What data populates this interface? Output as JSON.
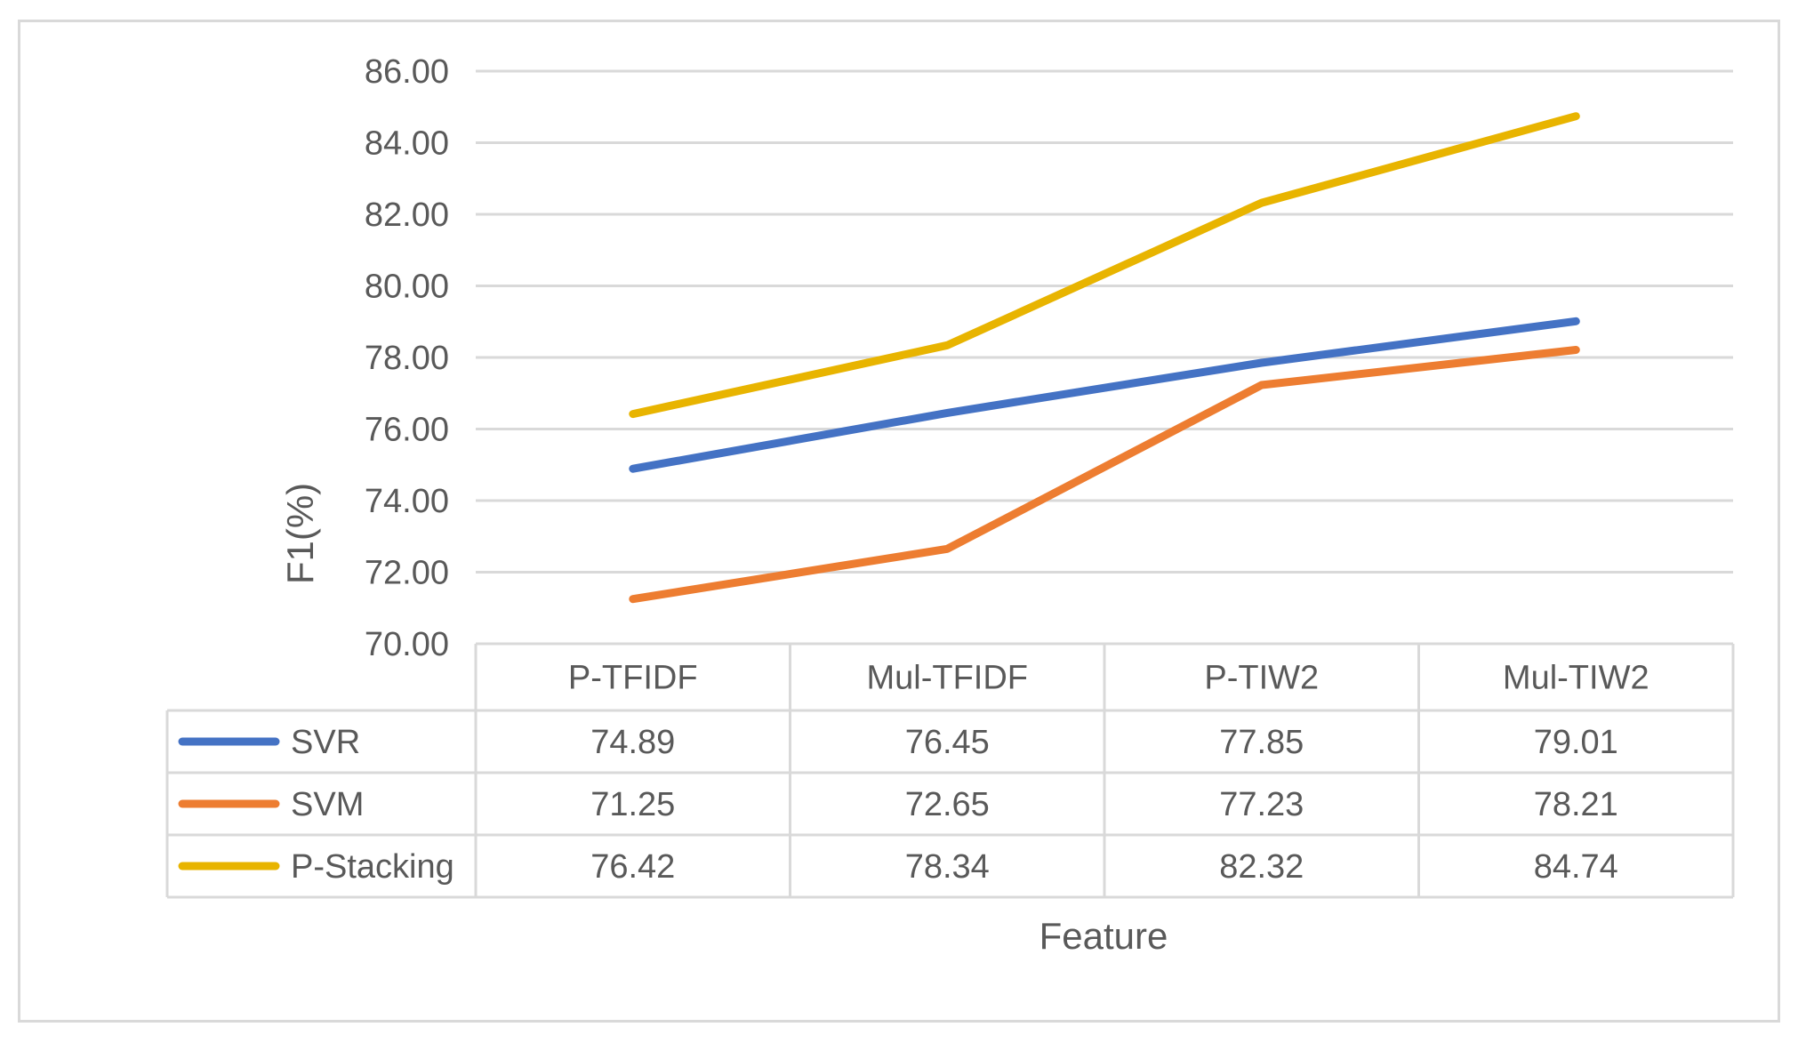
{
  "chart_data": {
    "type": "line",
    "title": "",
    "xlabel": "Feature",
    "ylabel": "F1(%)",
    "ylim": [
      70,
      86
    ],
    "y_ticks": [
      "70.00",
      "72.00",
      "74.00",
      "76.00",
      "78.00",
      "80.00",
      "82.00",
      "84.00",
      "86.00"
    ],
    "grid": true,
    "legend_placement": "data-table",
    "categories": [
      "P-TFIDF",
      "Mul-TFIDF",
      "P-TIW2",
      "Mul-TIW2"
    ],
    "series": [
      {
        "name": "SVR",
        "color": "#4472c4",
        "values": [
          74.89,
          76.45,
          77.85,
          79.01
        ],
        "labels": [
          "74.89",
          "76.45",
          "77.85",
          "79.01"
        ]
      },
      {
        "name": "SVM",
        "color": "#ed7d31",
        "values": [
          71.25,
          72.65,
          77.23,
          78.21
        ],
        "labels": [
          "71.25",
          "72.65",
          "77.23",
          "78.21"
        ]
      },
      {
        "name": "P-Stacking",
        "color": "#e8b400",
        "values": [
          76.42,
          78.34,
          82.32,
          84.74
        ],
        "labels": [
          "76.42",
          "78.34",
          "82.32",
          "84.74"
        ]
      }
    ]
  }
}
